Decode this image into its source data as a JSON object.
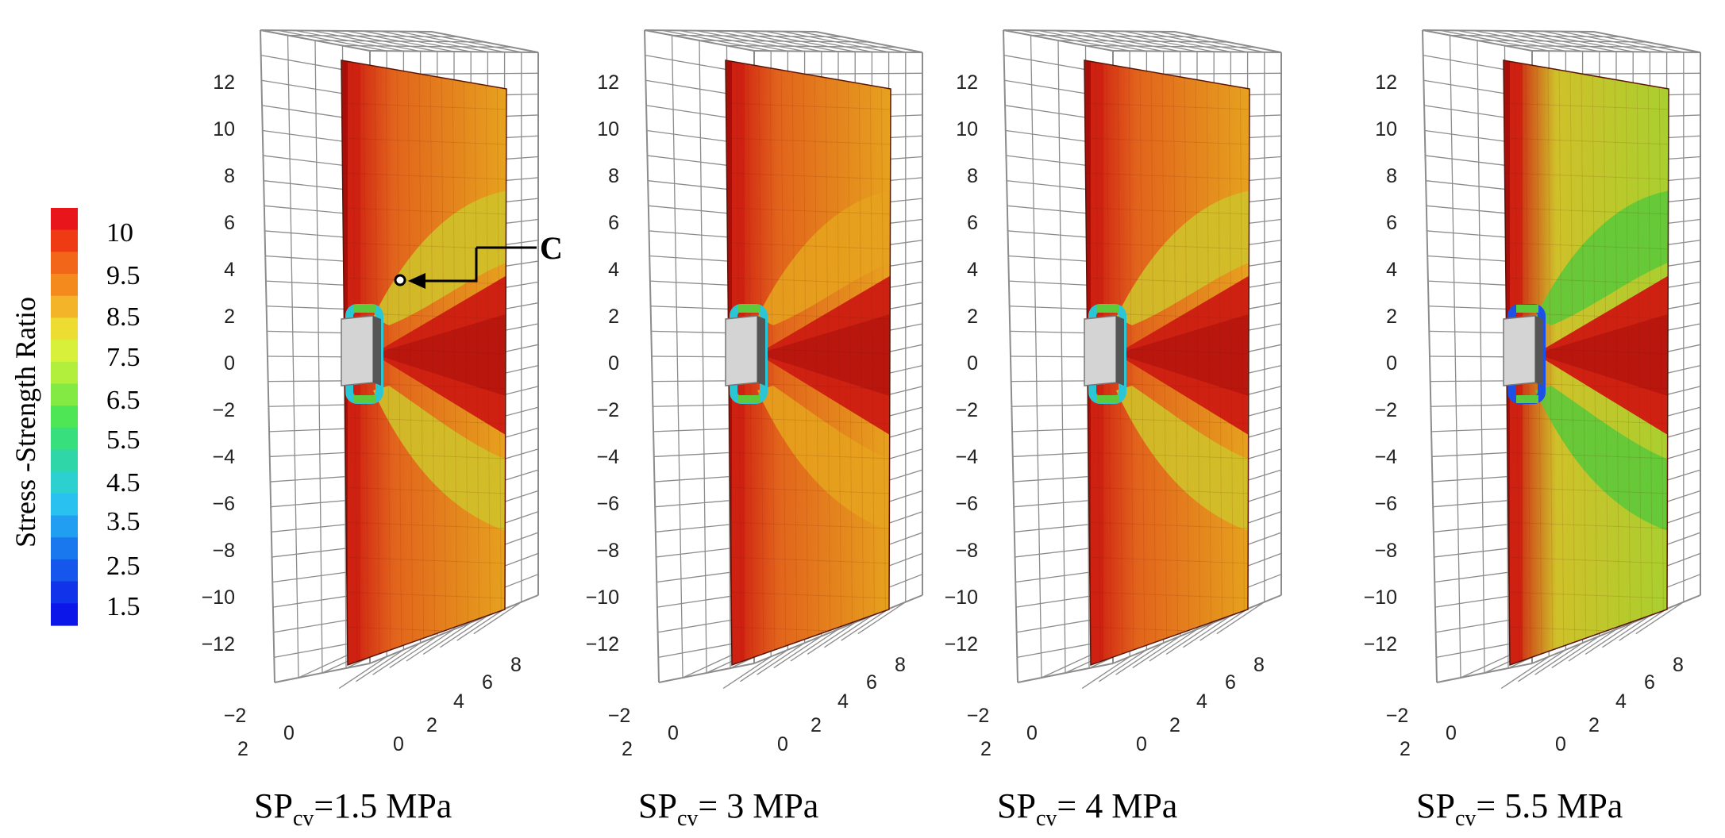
{
  "colorbar": {
    "title": "Stress -Strength Ratio",
    "labels": [
      "10",
      "9.5",
      "8.5",
      "7.5",
      "6.5",
      "5.5",
      "4.5",
      "3.5",
      "2.5",
      "1.5"
    ],
    "colors": [
      "#e8161b",
      "#ee3b14",
      "#f2661a",
      "#f48a1e",
      "#f3b42a",
      "#eddc31",
      "#d8f03a",
      "#b2ee3c",
      "#82ea42",
      "#4fe655",
      "#37e07c",
      "#2fd6a7",
      "#2bd0cf",
      "#29c2f0",
      "#219ef1",
      "#1a78ee",
      "#1556ec",
      "#1133ea",
      "#0c16e8"
    ]
  },
  "grid_axes": {
    "vertical_ticks": [
      "12",
      "10",
      "8",
      "6",
      "4",
      "2",
      "0",
      "−2",
      "−4",
      "−6",
      "−8",
      "−10",
      "−12"
    ],
    "depth_ticks": [
      "−2",
      "0",
      "2"
    ],
    "width_ticks": [
      "0",
      "2",
      "4",
      "6",
      "8"
    ]
  },
  "annotation": {
    "label": "C"
  },
  "colors": {
    "red": "#cf2112",
    "darkred": "#a80f0b",
    "orange": "#e2641c",
    "amber": "#e6a21e",
    "yellow": "#cfc12a",
    "lime": "#a9cf2e",
    "green": "#5ec93a",
    "cyan": "#2bc6d6",
    "blue": "#1c50e6",
    "grid": "#8c8c8c",
    "opening": "#d4d4d4"
  },
  "panels": [
    {
      "caption_main": "SP",
      "caption_sub": "cv",
      "caption_value": "=1.5 MPa",
      "base": "orange",
      "far": "amber",
      "lobe": "yellow",
      "ring": "cyan"
    },
    {
      "caption_main": "SP",
      "caption_sub": "cv",
      "caption_value": "= 3 MPa",
      "base": "orange",
      "far": "amber",
      "lobe": "amber",
      "ring": "cyan"
    },
    {
      "caption_main": "SP",
      "caption_sub": "cv",
      "caption_value": "= 4 MPa",
      "base": "orange",
      "far": "amber",
      "lobe": "yellow",
      "ring": "cyan"
    },
    {
      "caption_main": "SP",
      "caption_sub": "cv",
      "caption_value": "= 5.5 MPa",
      "base": "yellow",
      "far": "lime",
      "lobe": "green",
      "ring": "blue"
    }
  ]
}
